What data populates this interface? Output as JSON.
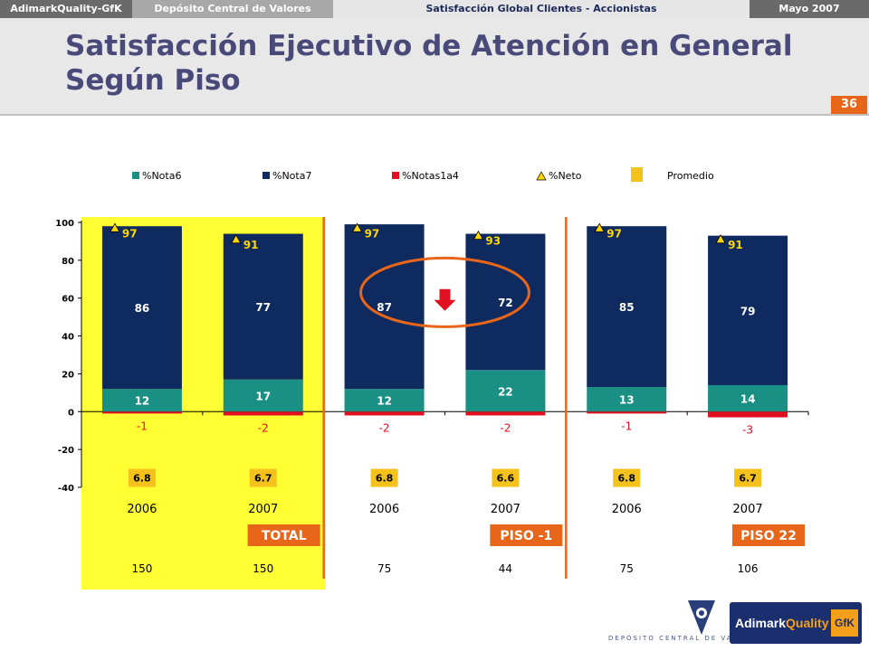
{
  "header": {
    "brand": "AdimarkQuality-GfK",
    "client": "Depósito Central de Valores",
    "study": "Satisfacción Global Clientes - Accionistas",
    "date": "Mayo 2007"
  },
  "title": "Satisfacción Ejecutivo de Atención en General Según Piso",
  "page_number": "36",
  "colors": {
    "nota6": "#1a8f84",
    "nota7": "#0e2a5e",
    "notas1a4": "#e01020",
    "neto_marker": "#ffd700",
    "promedio_box": "#f5c21b",
    "highlight_total": "#ffff33",
    "segment_label": "#e8661a",
    "divider": "#e8661a",
    "negative_label": "#e01020"
  },
  "chart_data": {
    "type": "bar",
    "stacked": true,
    "categories": [
      "2006",
      "2007",
      "2006",
      "2007",
      "2006",
      "2007"
    ],
    "groups": [
      {
        "label": "TOTAL",
        "categories": [
          0,
          1
        ]
      },
      {
        "label": "PISO -1",
        "categories": [
          2,
          3
        ]
      },
      {
        "label": "PISO 22",
        "categories": [
          4,
          5
        ]
      }
    ],
    "series": [
      {
        "name": "%Nota6",
        "values": [
          12,
          17,
          12,
          22,
          13,
          14
        ]
      },
      {
        "name": "%Nota7",
        "values": [
          86,
          77,
          87,
          72,
          85,
          79
        ]
      },
      {
        "name": "%Notas1a4",
        "values": [
          -1,
          -2,
          -2,
          -2,
          -1,
          -3
        ]
      }
    ],
    "neto": {
      "name": "%Neto",
      "values": [
        97,
        91,
        97,
        93,
        97,
        91
      ]
    },
    "promedio": {
      "name": "Promedio",
      "values": [
        "6.8",
        "6.7",
        "6.8",
        "6.6",
        "6.8",
        "6.7"
      ]
    },
    "base_n": [
      "150",
      "150",
      "75",
      "44",
      "75",
      "106"
    ],
    "ylim": [
      -40,
      100
    ],
    "yticks": [
      100,
      80,
      60,
      40,
      20,
      0,
      -20,
      -40
    ],
    "grid": false,
    "legend_position": "top"
  }
}
